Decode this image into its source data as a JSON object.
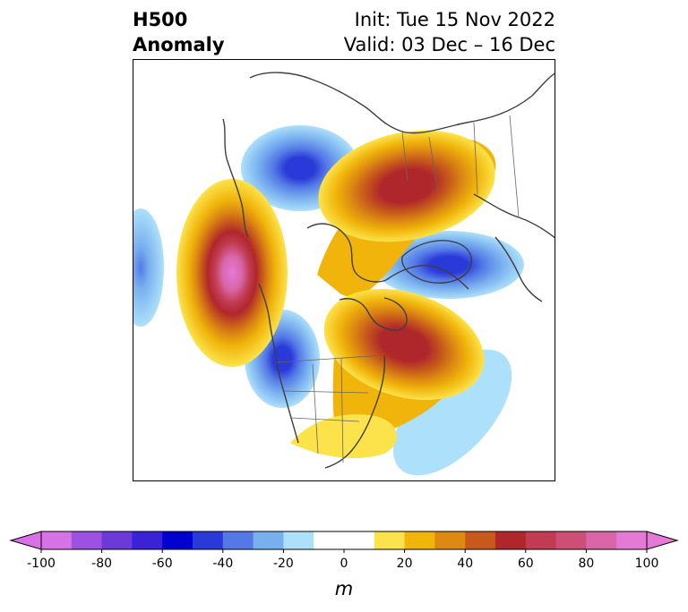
{
  "title": {
    "left_line1": "H500",
    "left_line2": "Anomaly",
    "right_line1": "Init: Tue 15 Nov 2022",
    "right_line2": "Valid: 03 Dec – 16 Dec"
  },
  "map": {
    "projection": "polar stereographic, North America / North Pacific / Arctic",
    "variable": "500 hPa geopotential height anomaly",
    "anomaly_centers": [
      {
        "sign": "positive",
        "region": "Gulf of Alaska / NE Pacific",
        "peak_m": 100
      },
      {
        "sign": "positive",
        "region": "Northern Siberia / Arctic",
        "peak_m": 60
      },
      {
        "sign": "positive",
        "region": "Hudson Bay / Eastern Canada",
        "peak_m": 60
      },
      {
        "sign": "negative",
        "region": "Far East Russia / Kamchatka",
        "peak_m": -50
      },
      {
        "sign": "negative",
        "region": "Pacific Northwest / Western US",
        "peak_m": -50
      },
      {
        "sign": "negative",
        "region": "Northern Europe / Scandinavia",
        "peak_m": -40
      },
      {
        "sign": "negative",
        "region": "Western Atlantic",
        "peak_m": -20
      },
      {
        "sign": "negative",
        "region": "Western North Pacific edge",
        "peak_m": -30
      }
    ]
  },
  "colorbar": {
    "unit": "m",
    "tick_labels": [
      "-100",
      "-80",
      "-60",
      "-40",
      "-20",
      "0",
      "20",
      "40",
      "60",
      "80",
      "100"
    ],
    "levels": [
      -100,
      -90,
      -80,
      -70,
      -60,
      -50,
      -40,
      -30,
      -20,
      -10,
      10,
      20,
      30,
      40,
      50,
      60,
      70,
      80,
      90,
      100
    ],
    "extend": "both",
    "colors": [
      "#d772e6",
      "#9c52e0",
      "#6c3ad8",
      "#3b22d6",
      "#0000d0",
      "#2a3ad8",
      "#5479e6",
      "#78afee",
      "#ade0fb",
      "#ffffff",
      "#fce34b",
      "#f0b40a",
      "#dc8a12",
      "#c75a1b",
      "#b0272b",
      "#c13b52",
      "#cc4f76",
      "#d866a8",
      "#e47ad6"
    ],
    "under_color": "#d772e6",
    "over_color": "#e47ad6"
  }
}
